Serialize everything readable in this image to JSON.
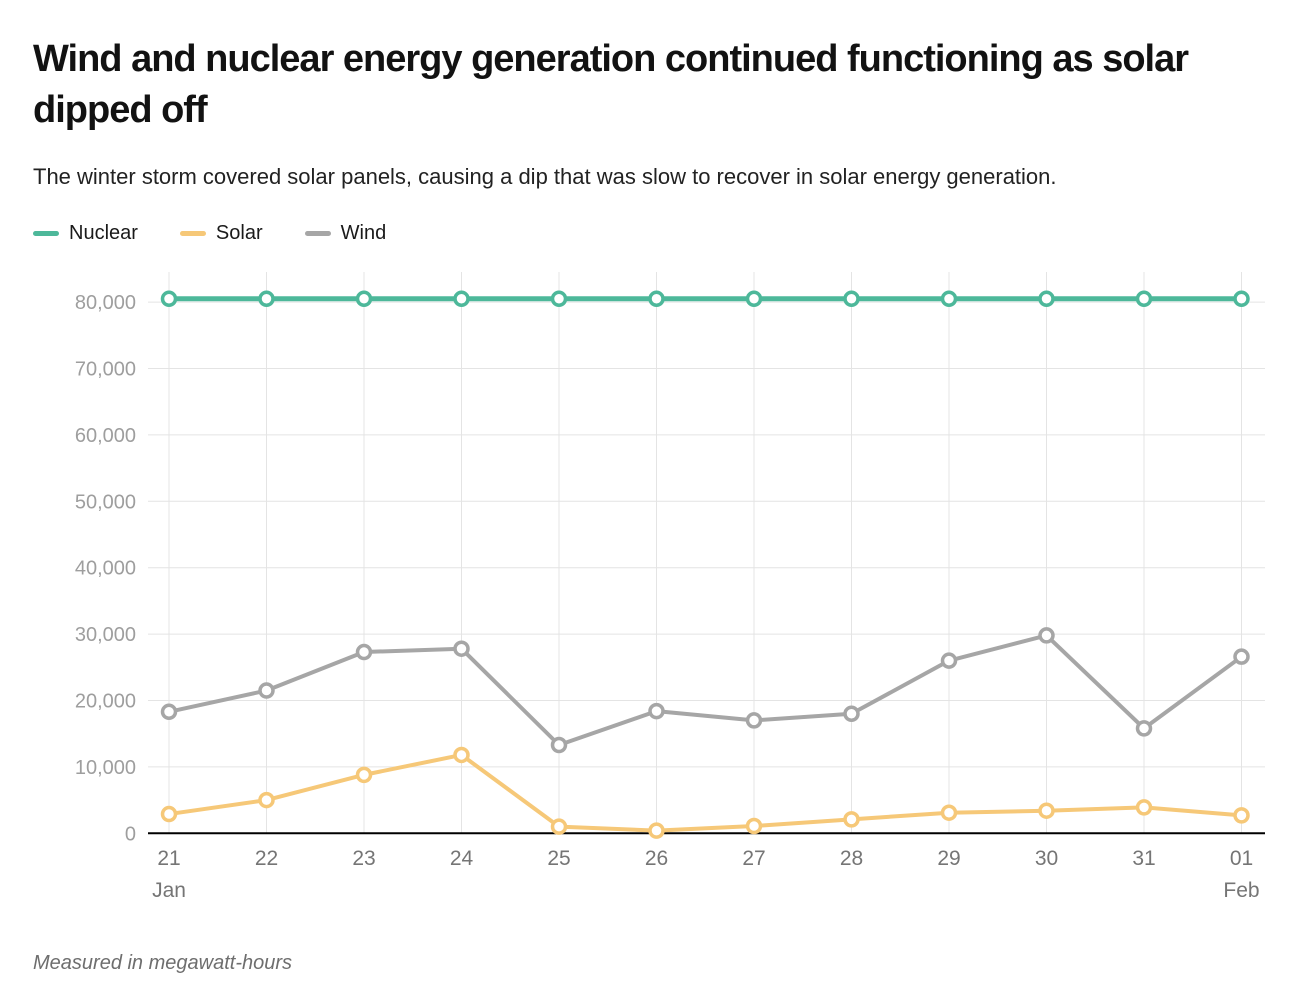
{
  "chart_data": {
    "type": "line",
    "title": "Wind and nuclear energy generation continued functioning as solar dipped off",
    "subtitle": "The winter storm covered solar panels, causing a dip that was slow to recover in solar energy generation.",
    "footnote": "Measured in megawatt-hours",
    "categories": [
      "21",
      "22",
      "23",
      "24",
      "25",
      "26",
      "27",
      "28",
      "29",
      "30",
      "31",
      "01"
    ],
    "month_markers": [
      {
        "index": 0,
        "label": "Jan"
      },
      {
        "index": 11,
        "label": "Feb"
      }
    ],
    "xlabel": "",
    "ylabel": "",
    "ylim": [
      0,
      85000
    ],
    "yticks": [
      0,
      10000,
      20000,
      30000,
      40000,
      50000,
      60000,
      70000,
      80000
    ],
    "grid": true,
    "legend_position": "top-left",
    "series": [
      {
        "name": "Nuclear",
        "color": "#4db89a",
        "values": [
          80500,
          80500,
          80500,
          80500,
          80500,
          80500,
          80500,
          80500,
          80500,
          80500,
          80500,
          80500
        ]
      },
      {
        "name": "Solar",
        "color": "#f6c878",
        "values": [
          2900,
          5000,
          8800,
          11800,
          1000,
          400,
          1100,
          2100,
          3100,
          3400,
          3900,
          2700
        ]
      },
      {
        "name": "Wind",
        "color": "#a6a6a6",
        "values": [
          18300,
          21500,
          27300,
          27800,
          13300,
          18400,
          17000,
          18000,
          26000,
          29800,
          15800,
          26600
        ]
      }
    ]
  },
  "style": {
    "grid_color": "#e4e4e4",
    "axis_color": "#000000",
    "ytick_color": "#9e9e9e",
    "xtick_color": "#757575",
    "title_color": "#121212",
    "subtitle_color": "#222222",
    "footnote_color": "#6e6e6e",
    "marker_fill": "#ffffff"
  }
}
